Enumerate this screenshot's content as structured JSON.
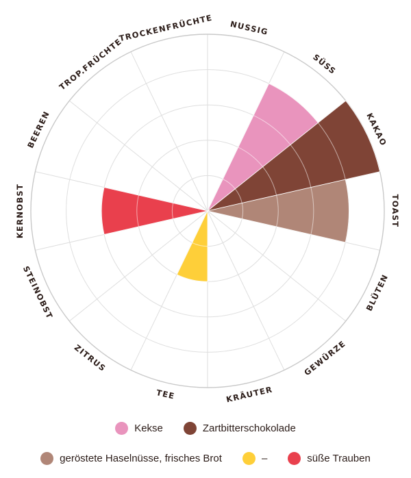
{
  "chart_data": {
    "type": "radial-bar",
    "categories": [
      "NUSSIG",
      "SÜSS",
      "KAKAO",
      "TOAST",
      "BLÜTEN",
      "GEWÜRZE",
      "KRÄUTER",
      "TEE",
      "ZITRUS",
      "STEINOBST",
      "KERNOBST",
      "BEEREN",
      "TROP.FRÜCHTE",
      "TROCKENFRÜCHTE"
    ],
    "rmax": 5,
    "grid_rings": [
      1,
      2,
      3,
      4,
      5
    ],
    "legend_placement": "bottom",
    "series": [
      {
        "name": "Kekse",
        "color": "#e994bd",
        "values": [
          0,
          4,
          1,
          0,
          0,
          0,
          0,
          0,
          0,
          0,
          0,
          0,
          0,
          0
        ]
      },
      {
        "name": "Zartbitterschokolade",
        "color": "#7f4436",
        "values": [
          0,
          0,
          5,
          0,
          0,
          0,
          0,
          0,
          0,
          0,
          0,
          0,
          0,
          0
        ]
      },
      {
        "name": "geröstete Haselnüsse, frisches Brot",
        "color": "#b08677",
        "values": [
          0,
          0,
          0,
          4,
          0,
          0,
          0,
          0,
          0,
          0,
          0,
          0,
          0,
          0
        ]
      },
      {
        "name": "–",
        "color": "#fecf39",
        "values": [
          0,
          0,
          0,
          0,
          0,
          0,
          0,
          2,
          0,
          0,
          0,
          0,
          0,
          0
        ]
      },
      {
        "name": "süße Trauben",
        "color": "#e9404d",
        "values": [
          0,
          0,
          0,
          0,
          0,
          0,
          0,
          0,
          0,
          0,
          3,
          0,
          0,
          0
        ]
      }
    ]
  }
}
